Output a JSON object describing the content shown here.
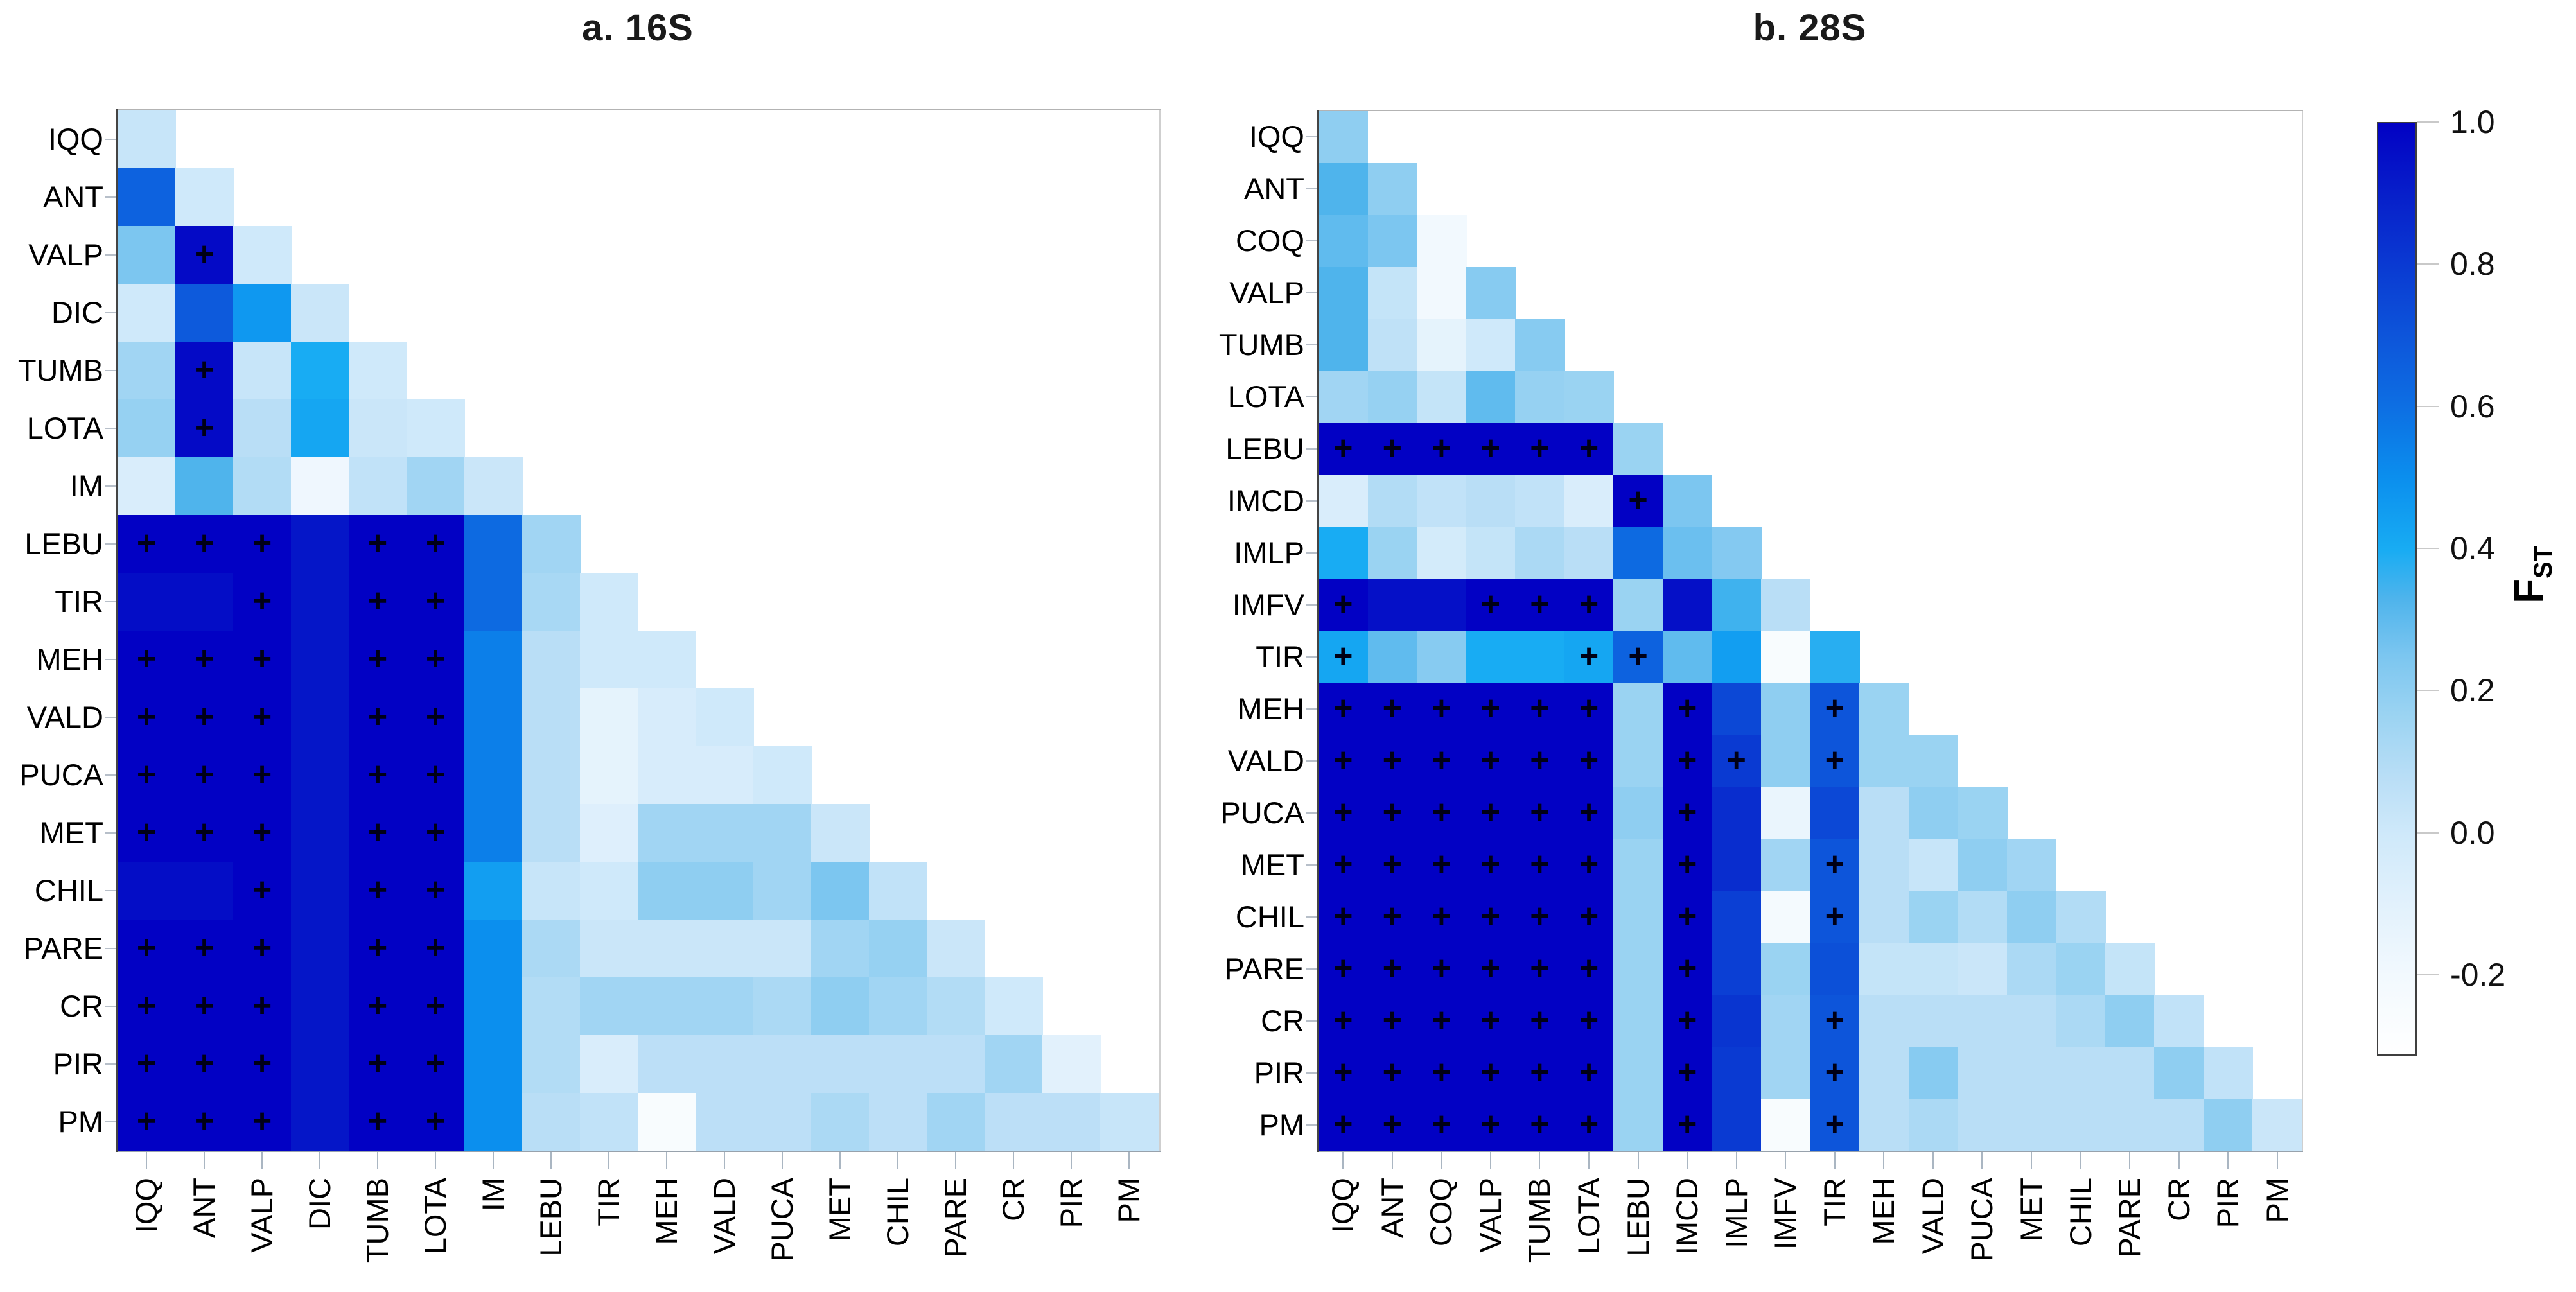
{
  "figure": {
    "background": "#ffffff",
    "sig_symbol": "+",
    "colorbar": {
      "label_main": "F",
      "label_sub": "ST",
      "tick_values": [
        1.0,
        0.8,
        0.6,
        0.4,
        0.2,
        0.0,
        -0.2
      ],
      "tick_labels": [
        "1.0",
        "0.8",
        "0.6",
        "0.4",
        "0.2",
        "0.0",
        "-0.2"
      ],
      "domain": [
        -0.31,
        1.0
      ],
      "stops": [
        [
          -0.31,
          "#ffffff"
        ],
        [
          -0.2,
          "#f2f9fe"
        ],
        [
          -0.1,
          "#e2f1fc"
        ],
        [
          0.0,
          "#cfe9fa"
        ],
        [
          0.08,
          "#b9def6"
        ],
        [
          0.17,
          "#9ad3f2"
        ],
        [
          0.25,
          "#7cc6f0"
        ],
        [
          0.33,
          "#4fb4ec"
        ],
        [
          0.4,
          "#18acf3"
        ],
        [
          0.5,
          "#0b8fee"
        ],
        [
          0.6,
          "#0d6fe3"
        ],
        [
          0.7,
          "#0d55da"
        ],
        [
          0.8,
          "#0a3ad2"
        ],
        [
          0.9,
          "#071fca"
        ],
        [
          1.0,
          "#0201c4"
        ]
      ]
    }
  },
  "chart_data": [
    {
      "type": "heatmap",
      "title": "a. 16S",
      "gene": "16S",
      "triangle": "lower",
      "value_label": "FST",
      "scale": {
        "min": -0.31,
        "max": 1.0
      },
      "categories": [
        "IQQ",
        "ANT",
        "VALP",
        "DIC",
        "TUMB",
        "LOTA",
        "IM",
        "LEBU",
        "TIR",
        "MEH",
        "VALD",
        "PUCA",
        "MET",
        "CHIL",
        "PARE",
        "CR",
        "PIR",
        "PM"
      ],
      "values": [
        [
          0.03
        ],
        [
          0.65,
          0.0
        ],
        [
          0.25,
          0.97,
          0.0
        ],
        [
          0.0,
          0.68,
          0.47,
          0.02
        ],
        [
          0.15,
          0.97,
          0.03,
          0.4,
          0.0
        ],
        [
          0.18,
          0.97,
          0.08,
          0.42,
          0.02,
          0.0
        ],
        [
          -0.05,
          0.33,
          0.1,
          -0.18,
          0.05,
          0.15,
          0.02
        ],
        [
          1.0,
          1.0,
          1.0,
          0.93,
          1.0,
          1.0,
          0.62,
          0.15
        ],
        [
          0.96,
          0.96,
          1.0,
          0.93,
          1.0,
          1.0,
          0.62,
          0.13,
          0.0
        ],
        [
          1.0,
          1.0,
          1.0,
          0.93,
          1.0,
          1.0,
          0.55,
          0.08,
          0.0,
          0.0
        ],
        [
          1.0,
          1.0,
          1.0,
          0.93,
          1.0,
          1.0,
          0.55,
          0.08,
          -0.12,
          -0.04,
          0.0
        ],
        [
          1.0,
          1.0,
          1.0,
          0.93,
          1.0,
          1.0,
          0.55,
          0.08,
          -0.12,
          -0.04,
          -0.04,
          0.0
        ],
        [
          1.0,
          1.0,
          1.0,
          0.93,
          1.0,
          1.0,
          0.55,
          0.08,
          -0.08,
          0.15,
          0.15,
          0.15,
          0.02
        ],
        [
          0.96,
          0.96,
          1.0,
          0.93,
          1.0,
          1.0,
          0.45,
          0.03,
          0.0,
          0.2,
          0.2,
          0.15,
          0.25,
          0.05
        ],
        [
          1.0,
          1.0,
          1.0,
          0.93,
          1.0,
          1.0,
          0.5,
          0.12,
          0.02,
          0.02,
          0.02,
          0.02,
          0.15,
          0.18,
          0.02
        ],
        [
          1.0,
          1.0,
          1.0,
          0.93,
          1.0,
          1.0,
          0.5,
          0.1,
          0.15,
          0.15,
          0.15,
          0.12,
          0.2,
          0.15,
          0.1,
          0.0
        ],
        [
          1.0,
          1.0,
          1.0,
          0.93,
          1.0,
          1.0,
          0.5,
          0.1,
          -0.05,
          0.07,
          0.07,
          0.07,
          0.07,
          0.07,
          0.07,
          0.15,
          -0.1
        ],
        [
          1.0,
          1.0,
          1.0,
          0.93,
          1.0,
          1.0,
          0.5,
          0.08,
          0.05,
          -0.25,
          0.07,
          0.07,
          0.12,
          0.07,
          0.15,
          0.07,
          0.07,
          0.03
        ]
      ],
      "significant": [
        [],
        [],
        [
          1
        ],
        [],
        [
          1
        ],
        [
          1
        ],
        [],
        [
          0,
          1,
          2,
          4,
          5
        ],
        [
          2,
          4,
          5
        ],
        [
          0,
          1,
          2,
          4,
          5
        ],
        [
          0,
          1,
          2,
          4,
          5
        ],
        [
          0,
          1,
          2,
          4,
          5
        ],
        [
          0,
          1,
          2,
          4,
          5
        ],
        [
          2,
          4,
          5
        ],
        [
          0,
          1,
          2,
          4,
          5
        ],
        [
          0,
          1,
          2,
          4,
          5
        ],
        [
          0,
          1,
          2,
          4,
          5
        ],
        [
          0,
          1,
          2,
          4,
          5
        ]
      ]
    },
    {
      "type": "heatmap",
      "title": "b. 28S",
      "gene": "28S",
      "triangle": "lower",
      "value_label": "FST",
      "scale": {
        "min": -0.31,
        "max": 1.0
      },
      "categories": [
        "IQQ",
        "ANT",
        "COQ",
        "VALP",
        "TUMB",
        "LOTA",
        "LEBU",
        "IMCD",
        "IMLP",
        "IMFV",
        "TIR",
        "MEH",
        "VALD",
        "PUCA",
        "MET",
        "CHIL",
        "PARE",
        "CR",
        "PIR",
        "PM"
      ],
      "values": [
        [
          0.2
        ],
        [
          0.33,
          0.2
        ],
        [
          0.3,
          0.25,
          -0.2
        ],
        [
          0.33,
          0.04,
          -0.2,
          0.22
        ],
        [
          0.33,
          0.06,
          -0.12,
          0.0,
          0.22
        ],
        [
          0.15,
          0.18,
          0.04,
          0.3,
          0.18,
          0.17
        ],
        [
          1.0,
          1.0,
          1.0,
          1.0,
          1.0,
          1.0,
          0.17
        ],
        [
          -0.05,
          0.1,
          0.05,
          0.08,
          0.05,
          -0.05,
          1.0,
          0.25
        ],
        [
          0.4,
          0.17,
          -0.02,
          0.04,
          0.12,
          0.08,
          0.62,
          0.28,
          0.23
        ],
        [
          1.0,
          0.95,
          0.95,
          1.0,
          1.0,
          1.0,
          0.17,
          0.95,
          0.35,
          0.08
        ],
        [
          0.42,
          0.3,
          0.22,
          0.4,
          0.4,
          0.42,
          0.65,
          0.3,
          0.45,
          -0.25,
          0.38
        ],
        [
          1.0,
          1.0,
          1.0,
          1.0,
          1.0,
          1.0,
          0.17,
          1.0,
          0.75,
          0.2,
          0.7,
          0.17
        ],
        [
          1.0,
          1.0,
          1.0,
          1.0,
          1.0,
          1.0,
          0.17,
          1.0,
          0.8,
          0.2,
          0.7,
          0.17,
          0.17
        ],
        [
          1.0,
          1.0,
          1.0,
          1.0,
          1.0,
          1.0,
          0.2,
          1.0,
          0.85,
          -0.15,
          0.75,
          0.08,
          0.2,
          0.17
        ],
        [
          1.0,
          1.0,
          1.0,
          1.0,
          1.0,
          1.0,
          0.17,
          1.0,
          0.85,
          0.15,
          0.7,
          0.08,
          0.03,
          0.2,
          0.15
        ],
        [
          1.0,
          1.0,
          1.0,
          1.0,
          1.0,
          1.0,
          0.17,
          1.0,
          0.78,
          -0.22,
          0.7,
          0.08,
          0.17,
          0.1,
          0.2,
          0.1
        ],
        [
          1.0,
          1.0,
          1.0,
          1.0,
          1.0,
          1.0,
          0.17,
          1.0,
          0.78,
          0.17,
          0.72,
          0.04,
          0.04,
          0.02,
          0.12,
          0.17,
          0.04
        ],
        [
          1.0,
          1.0,
          1.0,
          1.0,
          1.0,
          1.0,
          0.17,
          1.0,
          0.82,
          0.15,
          0.7,
          0.08,
          0.08,
          0.08,
          0.08,
          0.12,
          0.2,
          0.05
        ],
        [
          1.0,
          1.0,
          1.0,
          1.0,
          1.0,
          1.0,
          0.17,
          1.0,
          0.8,
          0.15,
          0.7,
          0.08,
          0.22,
          0.08,
          0.08,
          0.08,
          0.08,
          0.2,
          0.05
        ],
        [
          1.0,
          1.0,
          1.0,
          1.0,
          1.0,
          1.0,
          0.17,
          1.0,
          0.8,
          -0.25,
          0.7,
          0.08,
          0.12,
          0.08,
          0.08,
          0.08,
          0.08,
          0.08,
          0.2,
          0.02
        ]
      ],
      "significant": [
        [],
        [],
        [],
        [],
        [],
        [],
        [
          0,
          1,
          2,
          3,
          4,
          5
        ],
        [
          6
        ],
        [],
        [
          0,
          3,
          4,
          5
        ],
        [
          0,
          5,
          6
        ],
        [
          0,
          1,
          2,
          3,
          4,
          5,
          7,
          10
        ],
        [
          0,
          1,
          2,
          3,
          4,
          5,
          7,
          8,
          10
        ],
        [
          0,
          1,
          2,
          3,
          4,
          5,
          7
        ],
        [
          0,
          1,
          2,
          3,
          4,
          5,
          7,
          10
        ],
        [
          0,
          1,
          2,
          3,
          4,
          5,
          7,
          10
        ],
        [
          0,
          1,
          2,
          3,
          4,
          5,
          7
        ],
        [
          0,
          1,
          2,
          3,
          4,
          5,
          7,
          10
        ],
        [
          0,
          1,
          2,
          3,
          4,
          5,
          7,
          10
        ],
        [
          0,
          1,
          2,
          3,
          4,
          5,
          7,
          10
        ]
      ]
    }
  ]
}
